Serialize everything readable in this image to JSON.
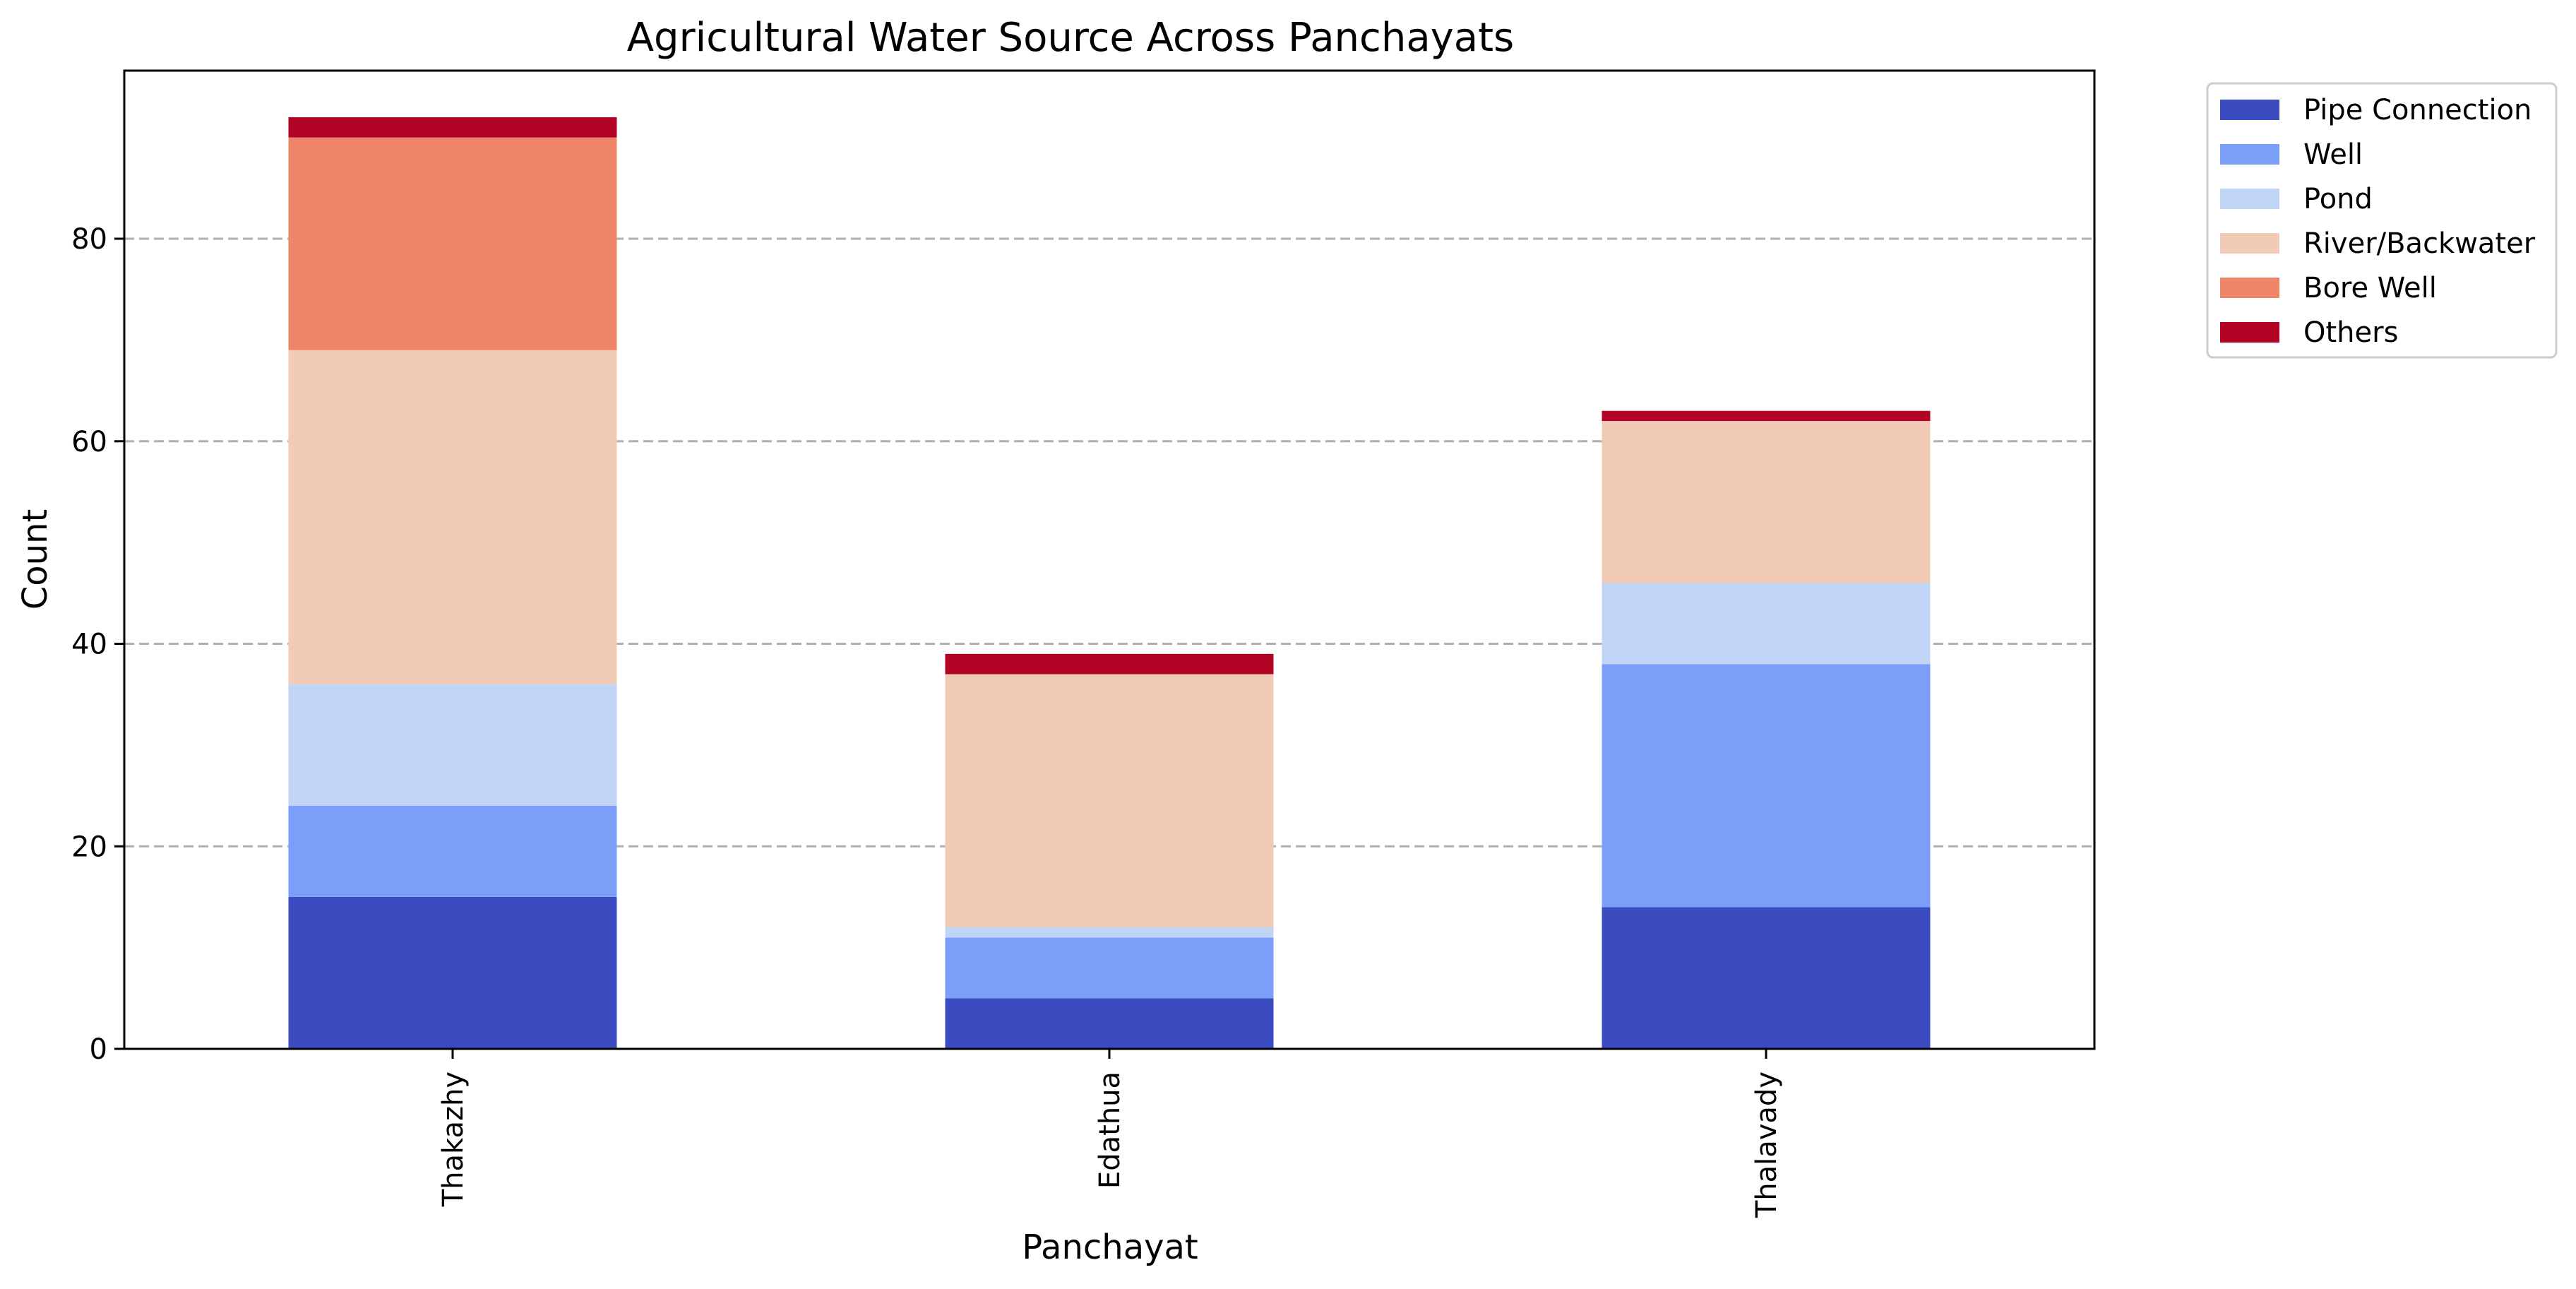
{
  "chart_data": {
    "type": "bar",
    "stacked": true,
    "title": "Agricultural Water Source Across Panchayats",
    "xlabel": "Panchayat",
    "ylabel": "Count",
    "categories": [
      "Thakazhy",
      "Edathua",
      "Thalavady"
    ],
    "ylim": [
      0,
      96.6
    ],
    "yticks": [
      0,
      20,
      40,
      60,
      80
    ],
    "grid": "y-dashed",
    "legend_position": "outside-top-right",
    "series": [
      {
        "name": "Pipe Connection",
        "color": "#3b4cc0",
        "values": [
          15,
          5,
          14
        ]
      },
      {
        "name": "Well",
        "color": "#7b9ff9",
        "values": [
          9,
          6,
          24
        ]
      },
      {
        "name": "Pond",
        "color": "#c0d4f5",
        "values": [
          12,
          1,
          8
        ]
      },
      {
        "name": "River/Backwater",
        "color": "#f2cbb7",
        "values": [
          33,
          25,
          16
        ]
      },
      {
        "name": "Bore Well",
        "color": "#ee8468",
        "values": [
          21,
          0,
          0
        ]
      },
      {
        "name": "Others",
        "color": "#b40426",
        "values": [
          2,
          2,
          1
        ]
      }
    ]
  }
}
